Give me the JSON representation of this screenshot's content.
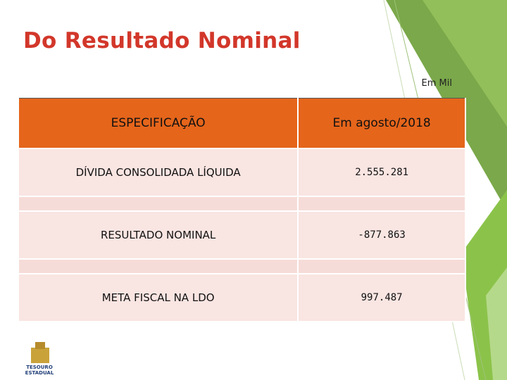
{
  "header": {
    "title": "Do Resultado Nominal",
    "unit": "Em Mil"
  },
  "table": {
    "columns": [
      "ESPECIFICAÇÃO",
      "Em agosto/2018"
    ],
    "rows": [
      [
        "DÍVIDA CONSOLIDADA LÍQUIDA",
        "2.555.281"
      ],
      [
        "RESULTADO NOMINAL",
        "-877.863"
      ],
      [
        "META FISCAL NA LDO",
        "997.487"
      ]
    ]
  },
  "logo": [
    "TESOURO",
    "ESTADUAL"
  ]
}
